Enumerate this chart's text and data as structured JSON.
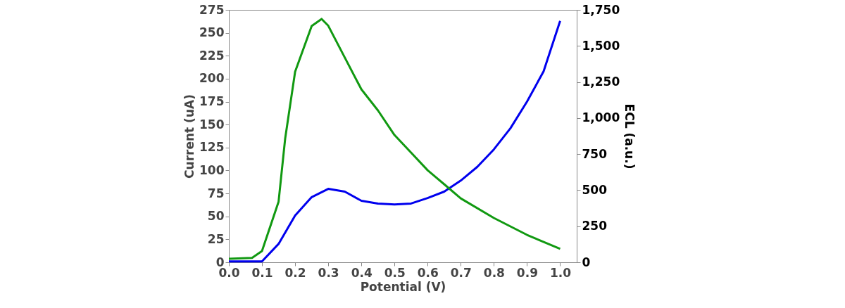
{
  "chart_data": {
    "type": "line",
    "xlabel": "Potential (V)",
    "ylabel": "Current (uA)",
    "y2label": "ECL (a.u.)",
    "xlim": [
      0,
      1.05
    ],
    "xticks": [
      {
        "value": 0,
        "label": "0.0"
      },
      0.1,
      0.2,
      0.3,
      0.4,
      0.5,
      0.6,
      0.7,
      0.8,
      0.9,
      {
        "value": 1,
        "label": "1.0"
      }
    ],
    "ylim": [
      0,
      275
    ],
    "yticks": [
      0,
      25,
      50,
      75,
      100,
      125,
      150,
      175,
      200,
      225,
      250,
      275
    ],
    "y2lim": [
      0,
      1750
    ],
    "y2ticks": [
      0,
      250,
      500,
      750,
      {
        "value": 1000,
        "label": "1,000"
      },
      {
        "value": 1250,
        "label": "1,250"
      },
      {
        "value": 1500,
        "label": "1,500"
      },
      {
        "value": 1750,
        "label": "1,750"
      }
    ],
    "grid": false,
    "line_style": "solid",
    "series": [
      {
        "color": "#0000ee",
        "axis": "y",
        "x": [
          0,
          0.05,
          0.1,
          0.15,
          0.2,
          0.25,
          0.3,
          0.35,
          0.4,
          0.45,
          0.5,
          0.55,
          0.6,
          0.65,
          0.7,
          0.75,
          0.8,
          0.85,
          0.9,
          0.95,
          1.0
        ],
        "values": [
          1,
          1,
          1,
          20,
          51,
          71,
          80,
          77,
          67,
          64,
          63,
          64,
          70,
          77,
          89,
          104,
          123,
          146,
          175,
          208,
          263
        ]
      },
      {
        "color": "#119911",
        "axis": "y2",
        "x": [
          0,
          0.07,
          0.1,
          0.15,
          0.17,
          0.2,
          0.25,
          0.28,
          0.3,
          0.35,
          0.4,
          0.45,
          0.5,
          0.55,
          0.6,
          0.65,
          0.7,
          0.8,
          0.9,
          1.0
        ],
        "values": [
          24,
          30,
          78,
          419,
          858,
          1321,
          1638,
          1687,
          1640,
          1419,
          1199,
          1053,
          882,
          760,
          638,
          541,
          443,
          307,
          190,
          93
        ]
      }
    ]
  }
}
